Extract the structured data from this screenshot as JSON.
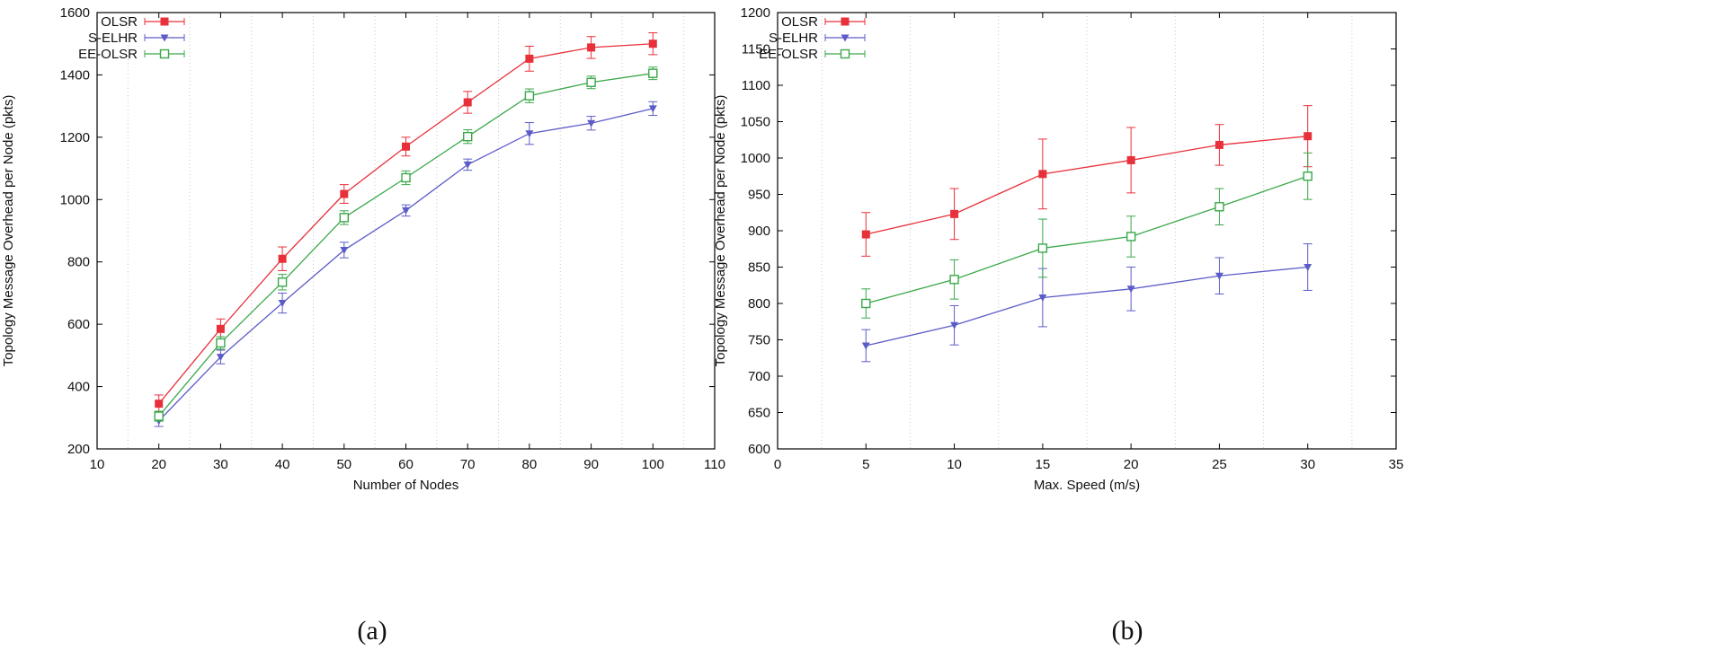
{
  "chart_data": [
    {
      "type": "line",
      "panel_label": "(a)",
      "title": "",
      "xlabel": "Number of Nodes",
      "ylabel": "Topology Message Overhead per Node (pkts)",
      "xlim": [
        10,
        110
      ],
      "ylim": [
        200,
        1600
      ],
      "xticks": [
        10,
        20,
        30,
        40,
        50,
        60,
        70,
        80,
        90,
        100,
        110
      ],
      "yticks": [
        200,
        400,
        600,
        800,
        1000,
        1200,
        1400,
        1600
      ],
      "grid": "vertical dotted",
      "legend": "top-left",
      "x": [
        20,
        30,
        40,
        50,
        60,
        70,
        80,
        90,
        100
      ],
      "series": [
        {
          "name": "OLSR",
          "color": "#e8303a",
          "marker": "filled-square",
          "values": [
            345,
            585,
            810,
            1018,
            1170,
            1312,
            1452,
            1488,
            1500
          ],
          "errors": [
            28,
            32,
            38,
            30,
            30,
            35,
            40,
            35,
            35
          ]
        },
        {
          "name": "S-ELHR",
          "color": "#5c5cc8",
          "marker": "triangle-down",
          "values": [
            290,
            495,
            668,
            838,
            965,
            1112,
            1212,
            1245,
            1292
          ],
          "errors": [
            18,
            22,
            32,
            25,
            18,
            18,
            35,
            22,
            22
          ]
        },
        {
          "name": "EE-OLSR",
          "color": "#3aa84a",
          "marker": "open-square",
          "values": [
            305,
            540,
            735,
            942,
            1070,
            1202,
            1333,
            1376,
            1405
          ],
          "errors": [
            16,
            20,
            25,
            22,
            22,
            22,
            22,
            20,
            20
          ]
        }
      ]
    },
    {
      "type": "line",
      "panel_label": "(b)",
      "title": "",
      "xlabel": "Max. Speed (m/s)",
      "ylabel": "Topology Message Overhead per Node (pkts)",
      "xlim": [
        0,
        35
      ],
      "ylim": [
        600,
        1200
      ],
      "xticks": [
        0,
        5,
        10,
        15,
        20,
        25,
        30,
        35
      ],
      "yticks": [
        600,
        650,
        700,
        750,
        800,
        850,
        900,
        950,
        1000,
        1050,
        1100,
        1150,
        1200
      ],
      "grid": "vertical dotted",
      "legend": "top-left",
      "x": [
        5,
        10,
        15,
        20,
        25,
        30
      ],
      "series": [
        {
          "name": "OLSR",
          "color": "#e8303a",
          "marker": "filled-square",
          "values": [
            895,
            923,
            978,
            997,
            1018,
            1030
          ],
          "errors": [
            30,
            35,
            48,
            45,
            28,
            42
          ]
        },
        {
          "name": "S-ELHR",
          "color": "#5c5cc8",
          "marker": "triangle-down",
          "values": [
            742,
            770,
            808,
            820,
            838,
            850
          ],
          "errors": [
            22,
            27,
            40,
            30,
            25,
            32
          ]
        },
        {
          "name": "EE-OLSR",
          "color": "#3aa84a",
          "marker": "open-square",
          "values": [
            800,
            833,
            876,
            892,
            933,
            975
          ],
          "errors": [
            20,
            27,
            40,
            28,
            25,
            32
          ]
        }
      ]
    }
  ]
}
